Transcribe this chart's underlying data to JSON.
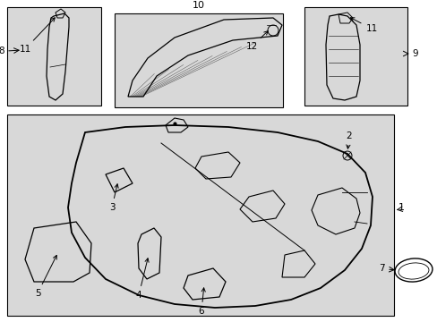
{
  "bg_color": "#ffffff",
  "box_bg": "#d8d8d8",
  "lc": "#000000",
  "fig_w": 4.89,
  "fig_h": 3.6,
  "dpi": 100
}
